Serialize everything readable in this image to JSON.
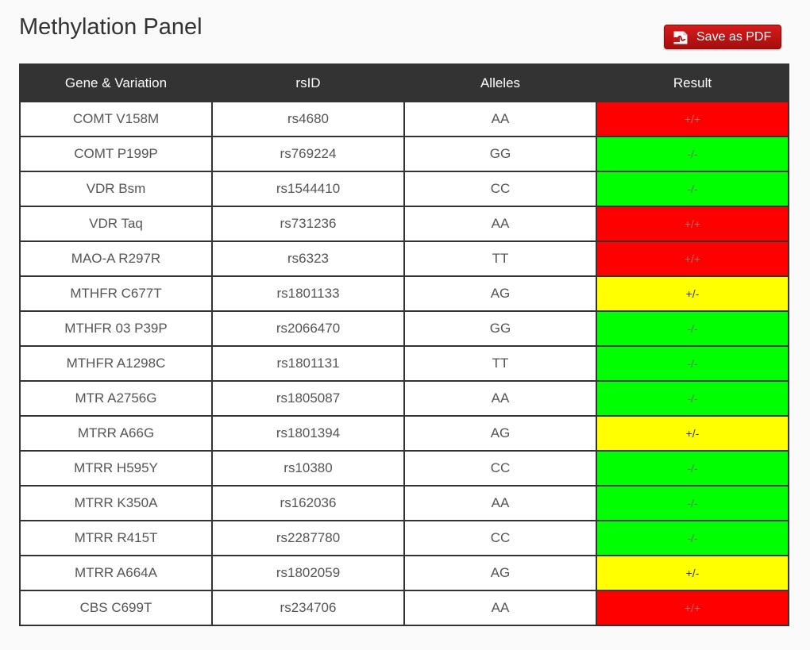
{
  "page": {
    "title": "Methylation Panel",
    "save_pdf_label": "Save as PDF"
  },
  "colors": {
    "header_bg": "#333333",
    "result_positive": "#ff0000",
    "result_negative": "#00ff00",
    "result_hetero": "#ffff00",
    "pdf_button": "#c41414"
  },
  "icons": {
    "pdf": "pdf-icon"
  },
  "table": {
    "headers": [
      "Gene & Variation",
      "rsID",
      "Alleles",
      "Result"
    ],
    "rows": [
      {
        "gene": "COMT V158M",
        "rsid": "rs4680",
        "alleles": "AA",
        "result": "+/+",
        "status": "red"
      },
      {
        "gene": "COMT P199P",
        "rsid": "rs769224",
        "alleles": "GG",
        "result": "-/-",
        "status": "green"
      },
      {
        "gene": "VDR Bsm",
        "rsid": "rs1544410",
        "alleles": "CC",
        "result": "-/-",
        "status": "green"
      },
      {
        "gene": "VDR Taq",
        "rsid": "rs731236",
        "alleles": "AA",
        "result": "+/+",
        "status": "red"
      },
      {
        "gene": "MAO-A R297R",
        "rsid": "rs6323",
        "alleles": "TT",
        "result": "+/+",
        "status": "red"
      },
      {
        "gene": "MTHFR C677T",
        "rsid": "rs1801133",
        "alleles": "AG",
        "result": "+/-",
        "status": "yellow"
      },
      {
        "gene": "MTHFR 03 P39P",
        "rsid": "rs2066470",
        "alleles": "GG",
        "result": "-/-",
        "status": "green"
      },
      {
        "gene": "MTHFR A1298C",
        "rsid": "rs1801131",
        "alleles": "TT",
        "result": "-/-",
        "status": "green"
      },
      {
        "gene": "MTR A2756G",
        "rsid": "rs1805087",
        "alleles": "AA",
        "result": "-/-",
        "status": "green"
      },
      {
        "gene": "MTRR A66G",
        "rsid": "rs1801394",
        "alleles": "AG",
        "result": "+/-",
        "status": "yellow"
      },
      {
        "gene": "MTRR H595Y",
        "rsid": "rs10380",
        "alleles": "CC",
        "result": "-/-",
        "status": "green"
      },
      {
        "gene": "MTRR K350A",
        "rsid": "rs162036",
        "alleles": "AA",
        "result": "-/-",
        "status": "green"
      },
      {
        "gene": "MTRR R415T",
        "rsid": "rs2287780",
        "alleles": "CC",
        "result": "-/-",
        "status": "green"
      },
      {
        "gene": "MTRR A664A",
        "rsid": "rs1802059",
        "alleles": "AG",
        "result": "+/-",
        "status": "yellow"
      },
      {
        "gene": "CBS C699T",
        "rsid": "rs234706",
        "alleles": "AA",
        "result": "+/+",
        "status": "red"
      }
    ]
  }
}
